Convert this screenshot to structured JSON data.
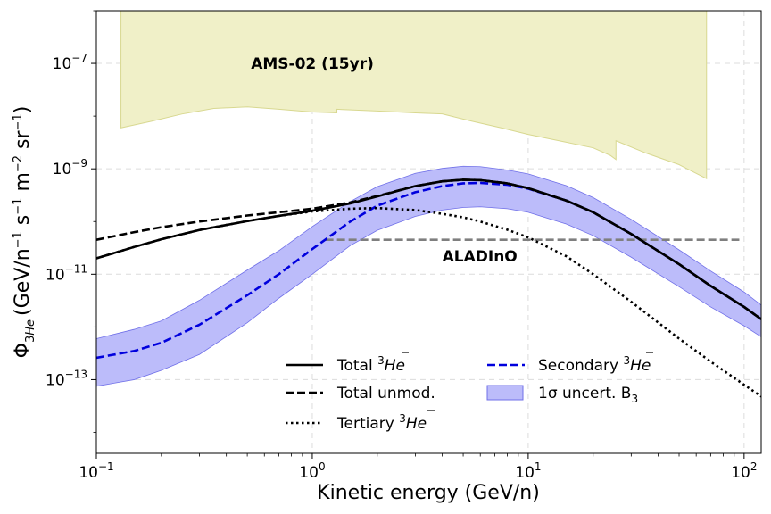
{
  "chart_data": {
    "type": "line",
    "xscale": "log",
    "yscale": "log",
    "xlim": [
      0.1,
      120
    ],
    "ylim": [
      4e-15,
      1e-06
    ],
    "grid": true,
    "xlabel": "Kinetic energy (GeV/n)",
    "ylabel": {
      "main": "Φ",
      "sub": "3",
      "sub2": "He",
      "units_pre": "(GeV/n",
      "units_exp1": "−1",
      "units_mid": " s",
      "units_exp2": "−1",
      "units_mid2": " m",
      "units_exp3": "−2",
      "units_mid3": " sr",
      "units_exp4": "−1",
      "units_post": ")"
    },
    "xticks": [
      {
        "value": 0.1,
        "base": "10",
        "exp": "−1"
      },
      {
        "value": 1,
        "base": "10",
        "exp": "0"
      },
      {
        "value": 10,
        "base": "10",
        "exp": "1"
      },
      {
        "value": 100,
        "base": "10",
        "exp": "2"
      }
    ],
    "yticks": [
      {
        "value": 1e-13,
        "base": "10",
        "exp": "−13"
      },
      {
        "value": 1e-11,
        "base": "10",
        "exp": "−11"
      },
      {
        "value": 1e-09,
        "base": "10",
        "exp": "−9"
      },
      {
        "value": 1e-07,
        "base": "10",
        "exp": "−7"
      }
    ],
    "annotations": [
      {
        "text": "AMS-02 (15yr)",
        "x": 0.52,
        "y": 1e-07
      },
      {
        "text": "ALADInO",
        "x": 4.0,
        "y": 2.2e-11
      }
    ],
    "legend": {
      "placement": "lower-center",
      "entries": [
        {
          "key": "total",
          "pre": "Total ",
          "sup": "3",
          "iso": "He"
        },
        {
          "key": "secondary",
          "pre": "Secondary ",
          "sup": "3",
          "iso": "He"
        },
        {
          "key": "unmod",
          "pre": "Total unmod.",
          "sup": "",
          "iso": ""
        },
        {
          "key": "band",
          "pre": "1σ uncert. B",
          "sub": "3",
          "sup": "",
          "iso": ""
        },
        {
          "key": "tertiary",
          "pre": "Tertiary ",
          "sup": "3",
          "iso": "He"
        }
      ]
    },
    "colors": {
      "ams_fill": "#f0f0c8",
      "ams_edge": "#d8d890",
      "band_fill": "#bcbcfa",
      "band_edge": "#7070e8",
      "secondary": "#0000dd",
      "total": "#000000",
      "aladino": "#7f7f7f",
      "grid": "#dcdcdc"
    },
    "ams_region": {
      "lower_edge": [
        [
          0.13,
          2e-08
        ],
        [
          0.13,
          6e-09
        ],
        [
          0.18,
          8e-09
        ],
        [
          0.25,
          1.1e-08
        ],
        [
          0.35,
          1.4e-08
        ],
        [
          0.5,
          1.5e-08
        ],
        [
          0.7,
          1.35e-08
        ],
        [
          1.0,
          1.2e-08
        ],
        [
          1.3,
          1.15e-08
        ],
        [
          1.3,
          1.35e-08
        ],
        [
          2.0,
          1.25e-08
        ],
        [
          3.0,
          1.15e-08
        ],
        [
          4.0,
          1.1e-08
        ],
        [
          5.5,
          8e-09
        ],
        [
          7.5,
          6e-09
        ],
        [
          10,
          4.5e-09
        ],
        [
          15,
          3.2e-09
        ],
        [
          20,
          2.5e-09
        ],
        [
          24,
          1.8e-09
        ],
        [
          25.5,
          1.5e-09
        ],
        [
          25.5,
          3.4e-09
        ],
        [
          35,
          2e-09
        ],
        [
          50,
          1.2e-09
        ],
        [
          67,
          6.5e-10
        ],
        [
          67,
          2e-06
        ]
      ],
      "top": 2e-06
    },
    "aladino_sensitivity": {
      "x": [
        1.15,
        95
      ],
      "y": [
        4.5e-11,
        4.5e-11
      ]
    },
    "series": [
      {
        "key": "total",
        "style": "solid",
        "x": [
          0.1,
          0.15,
          0.2,
          0.3,
          0.5,
          0.7,
          1.0,
          1.5,
          2.0,
          3.0,
          4.0,
          5.0,
          6.0,
          8.0,
          10,
          15,
          20,
          30,
          50,
          70,
          100,
          120
        ],
        "y": [
          2e-11,
          3.3e-11,
          4.6e-11,
          6.9e-11,
          1.02e-10,
          1.28e-10,
          1.6e-10,
          2.2e-10,
          3e-10,
          4.7e-10,
          5.8e-10,
          6.2e-10,
          6.1e-10,
          5.3e-10,
          4.3e-10,
          2.5e-10,
          1.5e-10,
          5.8e-11,
          1.55e-11,
          6e-12,
          2.4e-12,
          1.4e-12
        ]
      },
      {
        "key": "unmod",
        "style": "dashed",
        "x": [
          0.1,
          0.15,
          0.2,
          0.3,
          0.5,
          0.7,
          1.0,
          1.5,
          2.0,
          3.0,
          4.0,
          5.0,
          6.0,
          8.0,
          10,
          15,
          20,
          30,
          50,
          70,
          100,
          120
        ],
        "y": [
          4.5e-11,
          6.3e-11,
          7.8e-11,
          1e-10,
          1.3e-10,
          1.5e-10,
          1.75e-10,
          2.3e-10,
          3.05e-10,
          4.7e-10,
          5.8e-10,
          6.2e-10,
          6.1e-10,
          5.3e-10,
          4.3e-10,
          2.5e-10,
          1.5e-10,
          5.8e-11,
          1.55e-11,
          6e-12,
          2.4e-12,
          1.4e-12
        ]
      },
      {
        "key": "tertiary",
        "style": "dotted",
        "x": [
          0.1,
          0.15,
          0.2,
          0.3,
          0.5,
          0.7,
          1.0,
          1.5,
          2.0,
          3.0,
          4.0,
          5.0,
          6.0,
          8.0,
          10,
          15,
          20,
          30,
          50,
          70,
          100,
          120
        ],
        "y": [
          2e-11,
          3.3e-11,
          4.6e-11,
          6.9e-11,
          1.02e-10,
          1.28e-10,
          1.55e-10,
          1.75e-10,
          1.8e-10,
          1.65e-10,
          1.4e-10,
          1.2e-10,
          1e-10,
          7e-11,
          5e-11,
          2.2e-11,
          1e-11,
          3e-12,
          6e-13,
          2.2e-13,
          8e-14,
          4.8e-14
        ]
      },
      {
        "key": "secondary",
        "style": "dashed",
        "x": [
          0.1,
          0.15,
          0.2,
          0.3,
          0.5,
          0.7,
          1.0,
          1.5,
          2.0,
          3.0,
          4.0,
          5.0,
          6.0,
          8.0,
          10,
          15,
          20,
          30,
          50,
          70,
          100,
          120
        ],
        "y": [
          2.6e-13,
          3.5e-13,
          5e-13,
          1.1e-12,
          4e-12,
          1e-11,
          3e-11,
          1e-10,
          2e-10,
          3.6e-10,
          4.7e-10,
          5.3e-10,
          5.4e-10,
          5e-10,
          4.2e-10,
          2.5e-10,
          1.5e-10,
          5.8e-11,
          1.55e-11,
          6e-12,
          2.4e-12,
          1.4e-12
        ]
      }
    ],
    "band": {
      "key": "band",
      "x": [
        0.1,
        0.15,
        0.2,
        0.3,
        0.5,
        0.7,
        1.0,
        1.5,
        2.0,
        3.0,
        4.0,
        5.0,
        6.0,
        8.0,
        10,
        15,
        20,
        30,
        50,
        70,
        100,
        120
      ],
      "lower": [
        7.5e-14,
        1e-13,
        1.5e-13,
        3e-13,
        1.2e-12,
        3.5e-12,
        1e-11,
        3.5e-11,
        6.8e-11,
        1.25e-10,
        1.65e-10,
        1.85e-10,
        1.9e-10,
        1.75e-10,
        1.5e-10,
        9e-11,
        5.4e-11,
        2.1e-11,
        5.8e-12,
        2.4e-12,
        1.05e-12,
        6.5e-13
      ],
      "upper": [
        6e-13,
        9e-13,
        1.3e-12,
        3.2e-12,
        1.2e-11,
        2.8e-11,
        8e-11,
        2.4e-10,
        4.6e-10,
        8.2e-10,
        1.02e-09,
        1.12e-09,
        1.1e-09,
        9.5e-10,
        8e-10,
        4.8e-10,
        2.85e-10,
        1.1e-10,
        2.9e-11,
        1.15e-11,
        4.6e-12,
        2.6e-12
      ]
    }
  }
}
